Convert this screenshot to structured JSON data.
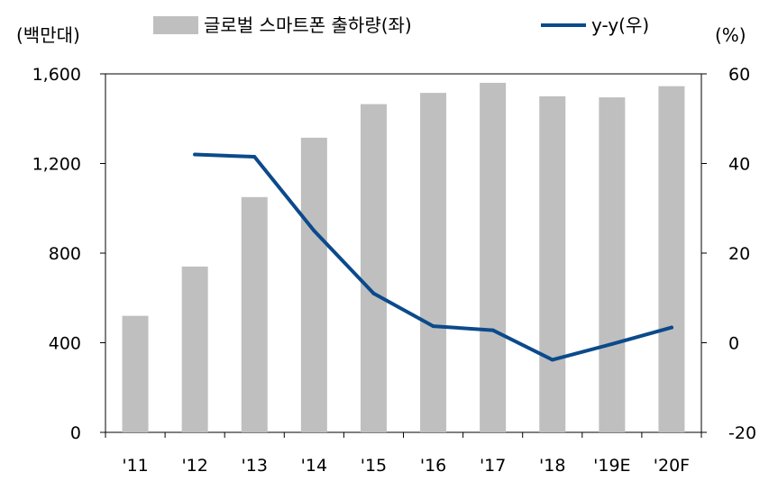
{
  "chart_data": {
    "type": "bar+line",
    "categories": [
      "'11",
      "'12",
      "'13",
      "'14",
      "'15",
      "'16",
      "'17",
      "'18",
      "'19E",
      "'20F"
    ],
    "series": [
      {
        "name": "글로벌 스마트폰 출하량(좌)",
        "type": "bar",
        "axis": "left",
        "color": "#bfbfbf",
        "values": [
          520,
          740,
          1050,
          1315,
          1465,
          1515,
          1560,
          1500,
          1495,
          1545
        ]
      },
      {
        "name": "y-y(우)",
        "type": "line",
        "axis": "right",
        "color": "#0b4a8b",
        "values": [
          null,
          42,
          41.5,
          25,
          11,
          3.7,
          2.8,
          -3.8,
          -0.3,
          3.4
        ]
      }
    ],
    "left_axis": {
      "unit": "(백만대)",
      "ylim": [
        0,
        1600
      ],
      "ticks": [
        0,
        400,
        800,
        1200,
        1600
      ],
      "tick_labels": [
        "0",
        "400",
        "800",
        "1,200",
        "1,600"
      ]
    },
    "right_axis": {
      "unit": "(%)",
      "ylim": [
        -20,
        60
      ],
      "ticks": [
        -20,
        0,
        20,
        40,
        60
      ],
      "tick_labels": [
        "-20",
        "0",
        "20",
        "40",
        "60"
      ]
    },
    "grid": false,
    "legend_position": "top"
  }
}
